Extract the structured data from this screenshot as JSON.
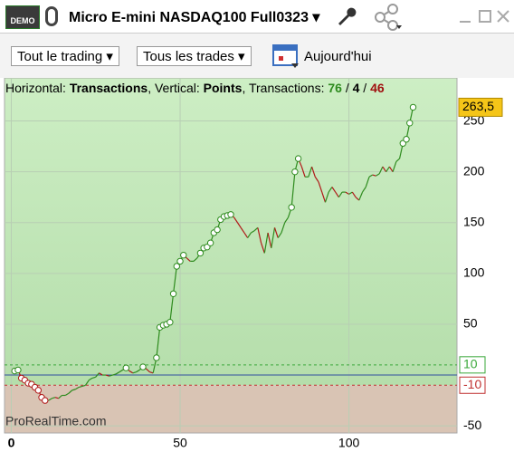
{
  "toolbar": {
    "badge": "DEMO",
    "title": "Micro E-mini NASDAQ100 Full0323"
  },
  "filters": {
    "scope": "Tout le trading",
    "trades": "Tous les trades",
    "date": "Aujourd'hui"
  },
  "info": [
    "Horizontal: ",
    "Transactions",
    ", Vertical: ",
    "Points",
    ", Transactions: ",
    "76",
    " / ",
    "4",
    " / ",
    "46"
  ],
  "watermark": "ProRealTime.com",
  "chart_data": {
    "type": "line",
    "color_up": "#2e8b1e",
    "color_down": "#b01818",
    "values": [
      4,
      5,
      -3,
      -5,
      -8,
      -9,
      -12,
      -15,
      -22,
      -25,
      -25,
      -23,
      -22,
      -23,
      -20,
      -20,
      -18,
      -15,
      -14,
      -12,
      -11,
      -10,
      -5,
      -3,
      -2,
      2,
      0,
      0,
      -1,
      0,
      1,
      3,
      5,
      7,
      4,
      2,
      3,
      5,
      8,
      6,
      3,
      2,
      17,
      47,
      49,
      50,
      52,
      80,
      107,
      112,
      118,
      115,
      112,
      112,
      115,
      120,
      125,
      126,
      130,
      140,
      143,
      153,
      156,
      157,
      158,
      155,
      150,
      145,
      140,
      135,
      140,
      142,
      145,
      130,
      120,
      140,
      125,
      145,
      135,
      140,
      150,
      155,
      165,
      200,
      213,
      205,
      195,
      195,
      205,
      195,
      190,
      180,
      170,
      180,
      185,
      180,
      175,
      180,
      180,
      178,
      180,
      175,
      172,
      180,
      185,
      195,
      197,
      196,
      198,
      205,
      200,
      205,
      200,
      210,
      213,
      228,
      232,
      248,
      263.5
    ],
    "last_label": "263,5",
    "thresholds": [
      {
        "value": 10,
        "label": "10",
        "color": "#3aa83a"
      },
      {
        "value": -10,
        "label": "-10",
        "color": "#c03030"
      }
    ],
    "xlim": [
      -2,
      132
    ],
    "ylim": [
      -57,
      271
    ],
    "xticks": [
      0,
      50,
      100
    ],
    "yticks": [
      -50,
      50,
      100,
      150,
      200,
      250
    ],
    "grid": true
  }
}
